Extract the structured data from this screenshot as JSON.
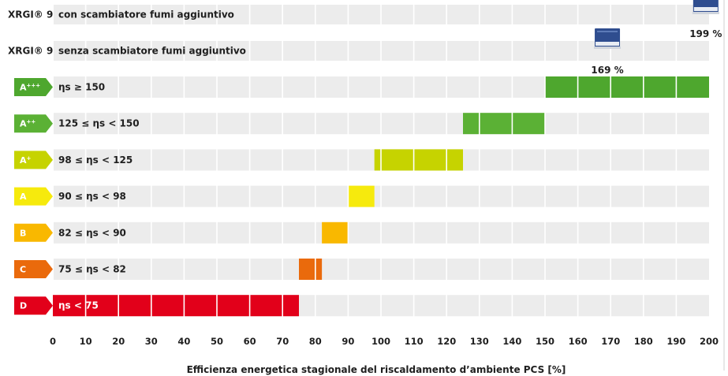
{
  "chart_data": {
    "type": "bar",
    "xlabel": "Efficienza energetica stagionale del riscaldamento d’ambiente PCS [%]",
    "xlim": [
      0,
      200
    ],
    "xticks": [
      0,
      10,
      20,
      30,
      40,
      50,
      60,
      70,
      80,
      90,
      100,
      110,
      120,
      130,
      140,
      150,
      160,
      170,
      180,
      190,
      200
    ],
    "grid": true,
    "products": [
      {
        "name": "XRGI® 9",
        "label": "con scambiatore fumi aggiuntivo",
        "value": 199,
        "value_label": "199 %",
        "image": "xrgi-unit-icon"
      },
      {
        "name": "XRGI® 9",
        "label": "senza scambiatore fumi aggiuntivo",
        "value": 169,
        "value_label": "169 %",
        "image": "xrgi-unit-icon"
      }
    ],
    "classes": [
      {
        "class": "A",
        "sup": "+++",
        "label": "ηs ≥ 150",
        "from": 150,
        "to": 200,
        "color": "#4ea72e"
      },
      {
        "class": "A",
        "sup": "++",
        "label": "125 ≤ ηs < 150",
        "from": 125,
        "to": 150,
        "color": "#5bb135"
      },
      {
        "class": "A",
        "sup": "+",
        "label": "98 ≤ ηs < 125",
        "from": 98,
        "to": 125,
        "color": "#c6d300"
      },
      {
        "class": "A",
        "sup": "",
        "label": "90 ≤ ηs < 98",
        "from": 90,
        "to": 98,
        "color": "#f6ea0d"
      },
      {
        "class": "B",
        "sup": "",
        "label": "82 ≤ ηs < 90",
        "from": 82,
        "to": 90,
        "color": "#f9b800"
      },
      {
        "class": "C",
        "sup": "",
        "label": "75 ≤ ηs < 82",
        "from": 75,
        "to": 82,
        "color": "#ea6a0c"
      },
      {
        "class": "D",
        "sup": "",
        "label": "ηs < 75",
        "from": 0,
        "to": 75,
        "color": "#e2001a"
      }
    ],
    "colors": {
      "track": "#ececec",
      "grid": "#ffffff",
      "text": "#1f1f1f"
    }
  }
}
